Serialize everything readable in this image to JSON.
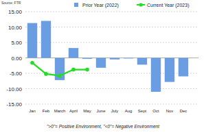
{
  "chart_data": {
    "type": "bar",
    "annotations": [
      "Source: FTR",
      "\">0\"= Positive Environment, \"<0\"= Negative Environment"
    ],
    "categories": [
      "Jan",
      "Feb",
      "March",
      "April",
      "May",
      "June",
      "July",
      "Aug",
      "Sept",
      "Oct",
      "Nov",
      "Dec"
    ],
    "series": [
      {
        "name": "Prior Year (2022)",
        "type": "bar",
        "color": "#6a9de2",
        "values": [
          11.3,
          12.0,
          -7.2,
          3.2,
          -0.3,
          -3.2,
          -0.5,
          -0.2,
          -2.2,
          -11.0,
          -7.8,
          -6.0
        ]
      },
      {
        "name": "Current Year (2023)",
        "type": "line",
        "color": "#22dd22",
        "marker": "circle",
        "values": [
          -1.6,
          -5.2,
          -5.8,
          -3.8,
          -3.8,
          null,
          null,
          null,
          null,
          null,
          null,
          null
        ]
      }
    ],
    "ylim": [
      -15,
      15
    ],
    "yticks": [
      {
        "value": 15,
        "label": "15.00"
      },
      {
        "value": 10,
        "label": "10.00"
      },
      {
        "value": 5,
        "label": "5.00"
      },
      {
        "value": 0,
        "label": "0.00"
      },
      {
        "value": -5,
        "label": "-5.00"
      },
      {
        "value": -10,
        "label": "-10.00"
      },
      {
        "value": -15,
        "label": "-15.00"
      }
    ],
    "grid": true,
    "legend": "top"
  }
}
